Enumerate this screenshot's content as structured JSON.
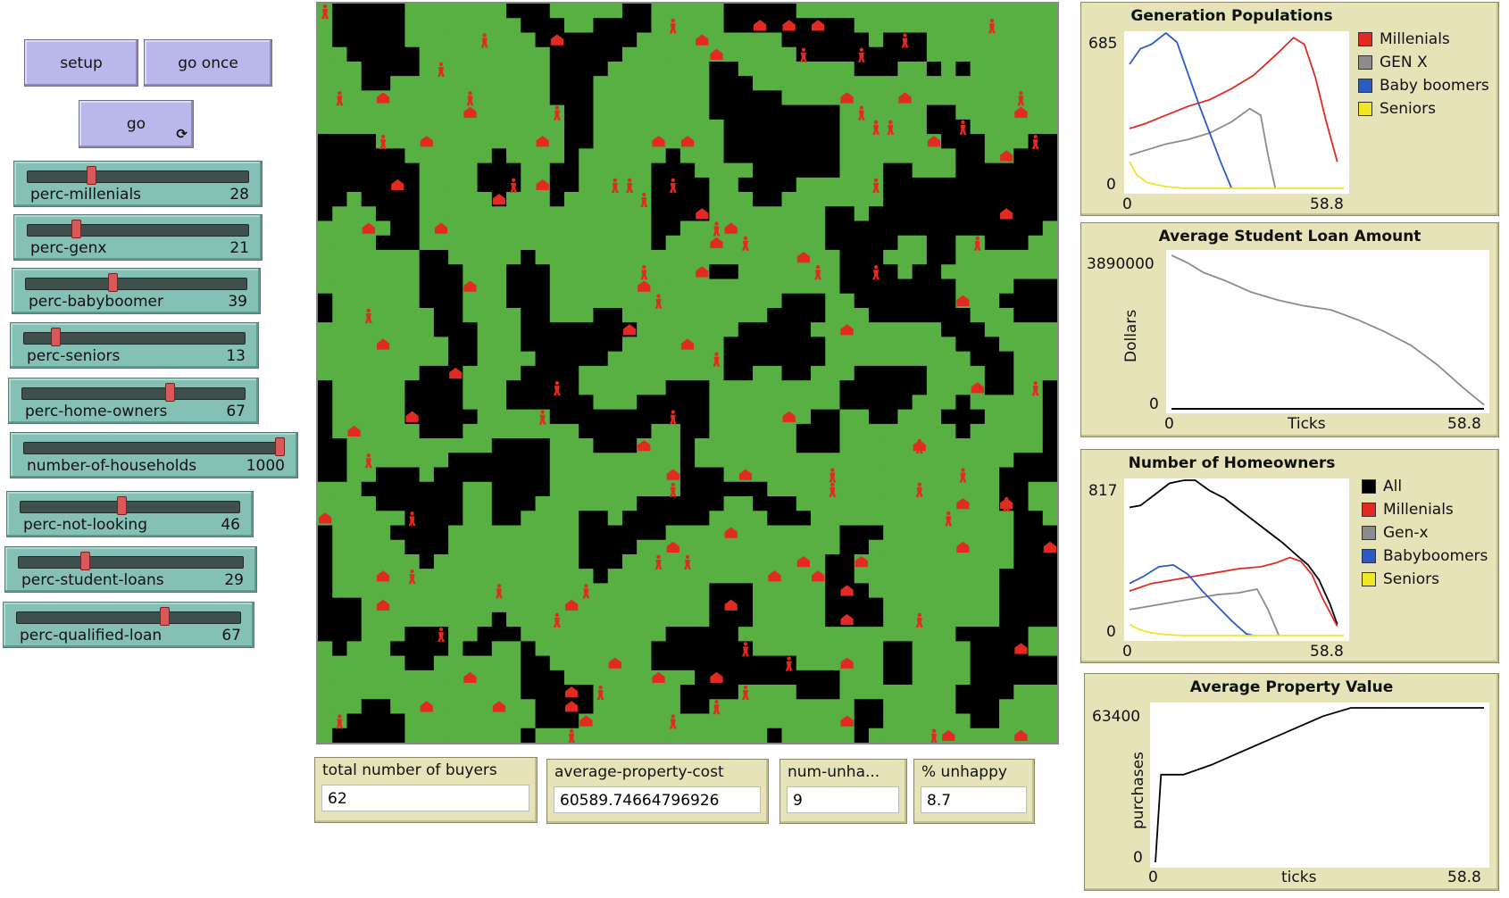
{
  "buttons": {
    "setup": "setup",
    "go_once": "go once",
    "go": "go",
    "forever_icon": "forever-loop-icon"
  },
  "sliders": [
    {
      "name": "perc-millenials",
      "value": "28",
      "fraction": 0.28
    },
    {
      "name": "perc-genx",
      "value": "21",
      "fraction": 0.21
    },
    {
      "name": "perc-babyboomer",
      "value": "39",
      "fraction": 0.39
    },
    {
      "name": "perc-seniors",
      "value": "13",
      "fraction": 0.13
    },
    {
      "name": "perc-home-owners",
      "value": "67",
      "fraction": 0.67
    },
    {
      "name": "number-of-households",
      "value": "1000",
      "fraction": 1.0
    },
    {
      "name": "perc-not-looking",
      "value": "46",
      "fraction": 0.46
    },
    {
      "name": "perc-student-loans",
      "value": "29",
      "fraction": 0.29
    },
    {
      "name": "perc-qualified-loan",
      "value": "67",
      "fraction": 0.67
    }
  ],
  "monitors": [
    {
      "label": "total number of buyers",
      "value": "62"
    },
    {
      "label": "average-property-cost",
      "value": "60589.74664796926"
    },
    {
      "label": "num-unha...",
      "value": "9"
    },
    {
      "label": "% unhappy",
      "value": "8.7"
    }
  ],
  "colors": {
    "grass": "#59b042",
    "empty": "#000000",
    "agent": "#e02a22",
    "millenials": "#e02a22",
    "genx": "#8c8c8c",
    "babyboomers": "#2a5bc4",
    "seniors": "#f2e524",
    "all": "#000000"
  },
  "chart_data": [
    {
      "type": "line",
      "title": "Generation Populations",
      "xlabel": "",
      "ylabel": "",
      "xlim": [
        0,
        58.8
      ],
      "ylim": [
        0,
        685
      ],
      "x_tick_labels": [
        "0",
        "58.8"
      ],
      "y_tick_labels": [
        "0",
        "685"
      ],
      "legend": "right",
      "series": [
        {
          "name": "Millenials",
          "color": "#e02a22",
          "x": [
            0,
            4,
            10,
            16,
            22,
            28,
            34,
            40,
            45,
            48,
            51,
            54,
            57
          ],
          "y": [
            270,
            290,
            330,
            370,
            400,
            450,
            510,
            600,
            680,
            650,
            500,
            300,
            120
          ]
        },
        {
          "name": "GEN X",
          "color": "#8c8c8c",
          "x": [
            0,
            4,
            10,
            16,
            22,
            28,
            33,
            36,
            38,
            40
          ],
          "y": [
            150,
            170,
            200,
            220,
            250,
            300,
            360,
            330,
            150,
            0
          ]
        },
        {
          "name": "Baby boomers",
          "color": "#2a5bc4",
          "x": [
            0,
            3,
            6,
            10,
            13,
            16,
            19,
            22,
            25,
            28
          ],
          "y": [
            560,
            630,
            650,
            720,
            660,
            520,
            380,
            250,
            120,
            0
          ]
        },
        {
          "name": "Seniors",
          "color": "#f2e524",
          "x": [
            0,
            2,
            5,
            10,
            15,
            20,
            30,
            58.8
          ],
          "y": [
            120,
            60,
            25,
            8,
            0,
            0,
            0,
            0
          ]
        }
      ]
    },
    {
      "type": "line",
      "title": "Average Student Loan Amount",
      "xlabel": "Ticks",
      "ylabel": "Dollars",
      "xlim": [
        0,
        58.8
      ],
      "ylim": [
        0,
        3890000
      ],
      "x_tick_labels": [
        "0",
        "58.8"
      ],
      "y_tick_labels": [
        "0",
        "3890000"
      ],
      "series": [
        {
          "name": "",
          "color": "#8c8c8c",
          "x": [
            0,
            3,
            6,
            10,
            15,
            20,
            25,
            30,
            35,
            40,
            45,
            50,
            55,
            58.8
          ],
          "y": [
            3890000,
            3700000,
            3450000,
            3250000,
            2950000,
            2750000,
            2600000,
            2500000,
            2250000,
            1950000,
            1600000,
            1100000,
            500000,
            80000
          ]
        }
      ]
    },
    {
      "type": "line",
      "title": "Number of Homeowners",
      "xlabel": "",
      "ylabel": "",
      "xlim": [
        0,
        58.8
      ],
      "ylim": [
        0,
        817
      ],
      "x_tick_labels": [
        "0",
        "58.8"
      ],
      "y_tick_labels": [
        "0",
        "817"
      ],
      "legend": "right",
      "series": [
        {
          "name": "All",
          "color": "#000000",
          "x": [
            0,
            3,
            7,
            11,
            15,
            18,
            22,
            26,
            30,
            34,
            38,
            42,
            46,
            49,
            52,
            55,
            57
          ],
          "y": [
            690,
            700,
            760,
            820,
            850,
            840,
            780,
            740,
            680,
            620,
            560,
            500,
            430,
            380,
            300,
            170,
            60
          ]
        },
        {
          "name": "Millenials",
          "color": "#e02a22",
          "x": [
            0,
            6,
            12,
            18,
            24,
            30,
            36,
            40,
            44,
            47,
            50,
            53,
            57
          ],
          "y": [
            240,
            280,
            300,
            320,
            340,
            360,
            370,
            390,
            420,
            400,
            330,
            200,
            50
          ]
        },
        {
          "name": "Gen-x",
          "color": "#8c8c8c",
          "x": [
            0,
            6,
            12,
            18,
            24,
            30,
            35,
            38,
            41
          ],
          "y": [
            140,
            160,
            180,
            200,
            220,
            230,
            250,
            140,
            0
          ]
        },
        {
          "name": "Babyboomers",
          "color": "#2a5bc4",
          "x": [
            0,
            4,
            8,
            12,
            16,
            20,
            24,
            28,
            32,
            34
          ],
          "y": [
            280,
            320,
            370,
            380,
            330,
            240,
            160,
            80,
            10,
            0
          ]
        },
        {
          "name": "Seniors",
          "color": "#f2e524",
          "x": [
            0,
            3,
            6,
            10,
            15,
            20,
            30,
            58.8
          ],
          "y": [
            60,
            30,
            15,
            5,
            0,
            0,
            0,
            0
          ]
        }
      ]
    },
    {
      "type": "line",
      "title": "Average Property Value",
      "xlabel": "ticks",
      "ylabel": "purchases",
      "xlim": [
        0,
        58.8
      ],
      "ylim": [
        0,
        63400
      ],
      "x_tick_labels": [
        "0",
        "58.8"
      ],
      "y_tick_labels": [
        "0",
        "63400"
      ],
      "series": [
        {
          "name": "",
          "color": "#000000",
          "x": [
            0,
            1,
            2,
            5,
            10,
            15,
            20,
            25,
            30,
            35,
            40,
            45,
            50,
            55,
            58.8
          ],
          "y": [
            0,
            36000,
            36000,
            36000,
            40000,
            45000,
            50000,
            55000,
            60000,
            63400,
            63400,
            63400,
            63400,
            63400,
            63400
          ]
        }
      ]
    }
  ]
}
